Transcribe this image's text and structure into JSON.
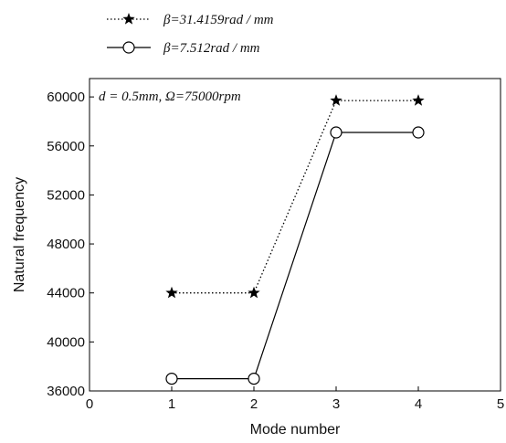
{
  "chart_data": {
    "type": "line",
    "xlabel": "Mode number",
    "ylabel": "Natural frequency",
    "xlim": [
      0,
      5
    ],
    "ylim": [
      36000,
      61500
    ],
    "x_ticks": [
      "0",
      "1",
      "2",
      "3",
      "4",
      "5"
    ],
    "y_ticks": [
      "36000",
      "40000",
      "44000",
      "48000",
      "52000",
      "56000",
      "60000"
    ],
    "annotation": "d = 0.5mm,  Ω=75000rpm",
    "legend_placement": "top-left, above plot",
    "series": [
      {
        "name": "β=31.4159rad / mm",
        "marker": "star",
        "line_style": "dotted",
        "color": "#000000",
        "x": [
          1,
          2,
          3,
          4
        ],
        "y": [
          44000,
          44000,
          59700,
          59700
        ]
      },
      {
        "name": "β=7.512rad / mm",
        "marker": "open-circle",
        "line_style": "solid",
        "color": "#000000",
        "x": [
          1,
          2,
          3,
          4
        ],
        "y": [
          37000,
          37000,
          57100,
          57100
        ]
      }
    ]
  }
}
